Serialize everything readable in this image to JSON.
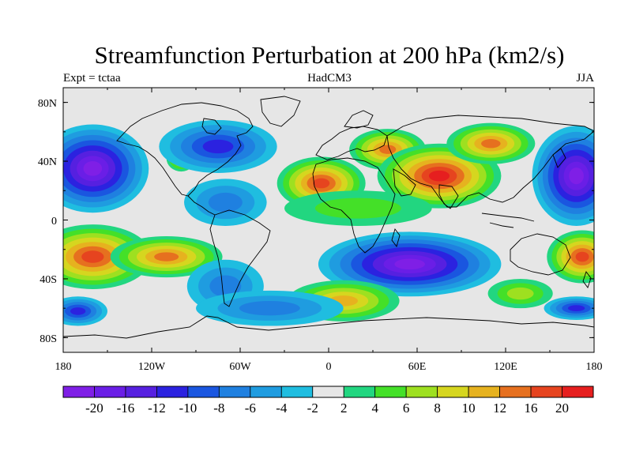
{
  "header": {
    "title": "Streamfunction Perturbation at 200 hPa (km2/s)",
    "left": "Expt = tctaa",
    "center": "HadCM3",
    "right": "JJA"
  },
  "axes": {
    "lat_ticks": [
      "80N",
      "40N",
      "0",
      "40S",
      "80S"
    ],
    "lon_ticks": [
      "180",
      "120W",
      "60W",
      "0",
      "60E",
      "120E",
      "180"
    ]
  },
  "colorbar": {
    "colors": [
      "#7f1fe6",
      "#6a1ee6",
      "#5620e0",
      "#2b22e0",
      "#1a56e0",
      "#1f80e0",
      "#1f9ce0",
      "#1fbde0",
      "#e6e6e6",
      "#22d680",
      "#44e028",
      "#9ee020",
      "#d6d61f",
      "#e6b21f",
      "#e6701f",
      "#e6441f",
      "#e61f1f"
    ],
    "labels": [
      "-20",
      "-16",
      "-12",
      "-10",
      "-8",
      "-6",
      "-4",
      "-2",
      "2",
      "4",
      "6",
      "8",
      "10",
      "12",
      "16",
      "20"
    ]
  },
  "map_data": {
    "projection": "cylindrical-equidistant",
    "lon_range": [
      -180,
      180
    ],
    "lat_range": [
      -90,
      90
    ],
    "features": [
      {
        "name": "north-pacific-low",
        "lon": -160,
        "lat": 35,
        "value": -20
      },
      {
        "name": "south-pacific-high",
        "lon": -150,
        "lat": -25,
        "value": 16
      },
      {
        "name": "west-pacific-low",
        "lon": 165,
        "lat": 30,
        "value": -20
      },
      {
        "name": "southwest-pacific-high",
        "lon": 170,
        "lat": -25,
        "value": 16
      },
      {
        "name": "asian-high",
        "lon": 75,
        "lat": 30,
        "value": 20
      },
      {
        "name": "north-africa-high",
        "lon": -5,
        "lat": 25,
        "value": 16
      },
      {
        "name": "indian-ocean-low",
        "lon": 55,
        "lat": -30,
        "value": -20
      },
      {
        "name": "south-atlantic-high",
        "lon": 10,
        "lat": -55,
        "value": 10
      },
      {
        "name": "north-america-low",
        "lon": -75,
        "lat": 50,
        "value": -10
      }
    ]
  }
}
